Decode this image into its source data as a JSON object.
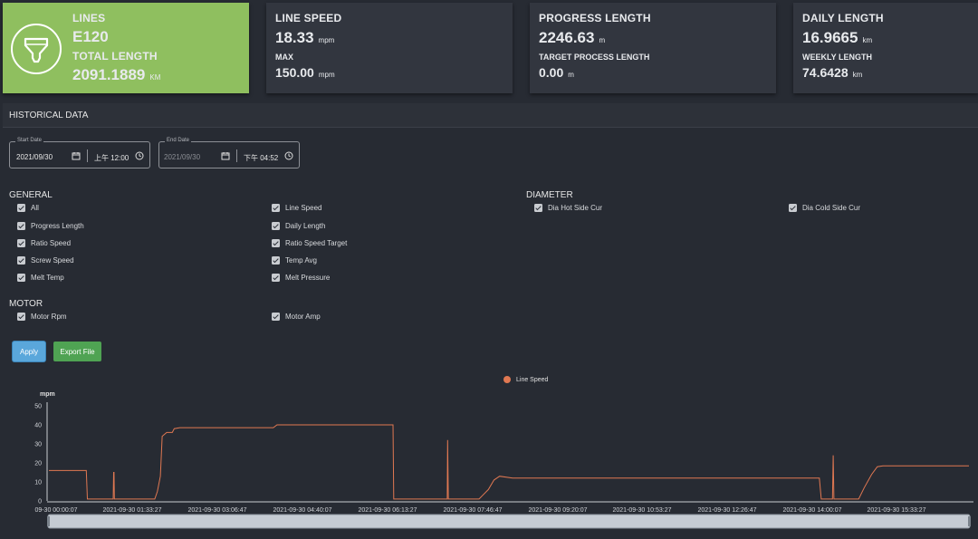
{
  "cards": {
    "lines": {
      "title": "LINES",
      "value": "E120",
      "sub_title": "TOTAL LENGTH",
      "sub_value": "2091.1889",
      "sub_unit": "KM",
      "icon": "hopper-icon"
    },
    "line_speed": {
      "title": "LINE SPEED",
      "value": "18.33",
      "unit": "mpm",
      "sub_title": "MAX",
      "sub_value": "150.00",
      "sub_unit": "mpm"
    },
    "progress_length": {
      "title": "PROGRESS LENGTH",
      "value": "2246.63",
      "unit": "m",
      "sub_title": "TARGET PROCESS LENGTH",
      "sub_value": "0.00",
      "sub_unit": "m"
    },
    "daily_length": {
      "title": "DAILY LENGTH",
      "value": "16.9665",
      "unit": "km",
      "sub_title": "WEEKLY LENGTH",
      "sub_value": "74.6428",
      "sub_unit": "km"
    }
  },
  "historical": {
    "title": "HISTORICAL DATA"
  },
  "start_date": {
    "label": "Start Date",
    "date": "2021/09/30",
    "time": "上午 12:00"
  },
  "end_date": {
    "label": "End Date",
    "date": "2021/09/30",
    "time": "下午 04:52"
  },
  "groups": {
    "general": {
      "title": "GENERAL",
      "items": [
        "All",
        "Line Speed",
        "Progress Length",
        "Daily Length",
        "Ratio Speed",
        "Ratio Speed Target",
        "Screw Speed",
        "Temp Avg",
        "Melt Temp",
        "Melt Pressure"
      ]
    },
    "diameter": {
      "title": "DIAMETER",
      "items": [
        "Dia Hot Side Cur",
        "Dia Cold Side Cur"
      ]
    },
    "motor": {
      "title": "MOTOR",
      "items": [
        "Motor Rpm",
        "Motor Amp"
      ]
    }
  },
  "buttons": {
    "apply": "Apply",
    "export": "Export File"
  },
  "colors": {
    "accent_green": "#8fbf5f",
    "series": "#e07852",
    "apply": "#5aa7db",
    "export": "#4fa353"
  },
  "chart_data": {
    "type": "line",
    "ylabel": "mpm",
    "ylim": [
      0,
      50
    ],
    "yticks": [
      0,
      10,
      20,
      30,
      40,
      50
    ],
    "legend": "top-center",
    "xticks": [
      "09-30 00:00:07",
      "2021-09-30 01:33:27",
      "2021-09-30 03:06:47",
      "2021-09-30 04:40:07",
      "2021-09-30 06:13:27",
      "2021-09-30 07:46:47",
      "2021-09-30 09:20:07",
      "2021-09-30 10:53:27",
      "2021-09-30 12:26:47",
      "2021-09-30 14:00:07",
      "2021-09-30 15:33:27"
    ],
    "series": [
      {
        "name": "Line Speed",
        "color": "#e07852",
        "points": [
          [
            0.0,
            16
          ],
          [
            1.0,
            16
          ],
          [
            1.03,
            1
          ],
          [
            1.72,
            1
          ],
          [
            1.73,
            15
          ],
          [
            1.74,
            15
          ],
          [
            1.75,
            1
          ],
          [
            2.83,
            1
          ],
          [
            2.9,
            5
          ],
          [
            2.98,
            13
          ],
          [
            3.03,
            34
          ],
          [
            3.15,
            36
          ],
          [
            3.3,
            36
          ],
          [
            3.35,
            38
          ],
          [
            3.5,
            38.5
          ],
          [
            6.0,
            38.5
          ],
          [
            6.1,
            40
          ],
          [
            9.2,
            40
          ],
          [
            9.22,
            1
          ],
          [
            10.65,
            1
          ],
          [
            10.66,
            32
          ],
          [
            10.68,
            1
          ],
          [
            11.5,
            1
          ],
          [
            11.6,
            3
          ],
          [
            11.75,
            6
          ],
          [
            11.9,
            11
          ],
          [
            12.05,
            13
          ],
          [
            12.4,
            12
          ],
          [
            20.6,
            12
          ],
          [
            20.65,
            1
          ],
          [
            20.95,
            1
          ],
          [
            20.97,
            24
          ],
          [
            20.99,
            1
          ],
          [
            21.65,
            1
          ],
          [
            21.8,
            7
          ],
          [
            22.0,
            14
          ],
          [
            22.15,
            18
          ],
          [
            22.3,
            18.5
          ],
          [
            24.6,
            18.5
          ]
        ]
      }
    ],
    "x_range": [
      0,
      24.6
    ]
  }
}
